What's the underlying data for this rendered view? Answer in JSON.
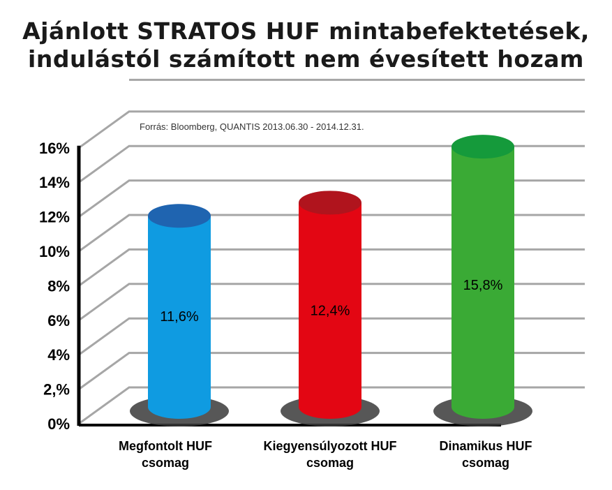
{
  "chart_data": {
    "type": "bar",
    "title_line1": "Ajánlott STRATOS HUF mintabefektetések,",
    "title_line2": "indulástól számított nem évesített hozam",
    "source": "Forrás: Bloomberg, QUANTIS 2013.06.30 - 2014.12.31.",
    "categories": [
      {
        "line1": "Megfontolt HUF",
        "line2": "csomag"
      },
      {
        "line1": "Kiegyensúlyozott HUF",
        "line2": "csomag"
      },
      {
        "line1": "Dinamikus HUF",
        "line2": "csomag"
      }
    ],
    "values": [
      11.6,
      12.4,
      15.8
    ],
    "value_labels": [
      "11,6%",
      "12,4%",
      "15,8%"
    ],
    "colors": [
      {
        "body": "#0f9be1",
        "top": "#1f64b0"
      },
      {
        "body": "#e30613",
        "top": "#b0141d"
      },
      {
        "body": "#3aaa35",
        "top": "#159a3b"
      }
    ],
    "yticks": [
      {
        "value": 0,
        "label": "0%"
      },
      {
        "value": 2,
        "label": "2,%"
      },
      {
        "value": 4,
        "label": "4%"
      },
      {
        "value": 6,
        "label": "6%"
      },
      {
        "value": 8,
        "label": "8%"
      },
      {
        "value": 10,
        "label": "10%"
      },
      {
        "value": 12,
        "label": "12%"
      },
      {
        "value": 14,
        "label": "14%"
      },
      {
        "value": 16,
        "label": "16%"
      }
    ],
    "ylim": [
      0,
      16
    ],
    "grid": true,
    "legend": "none"
  }
}
